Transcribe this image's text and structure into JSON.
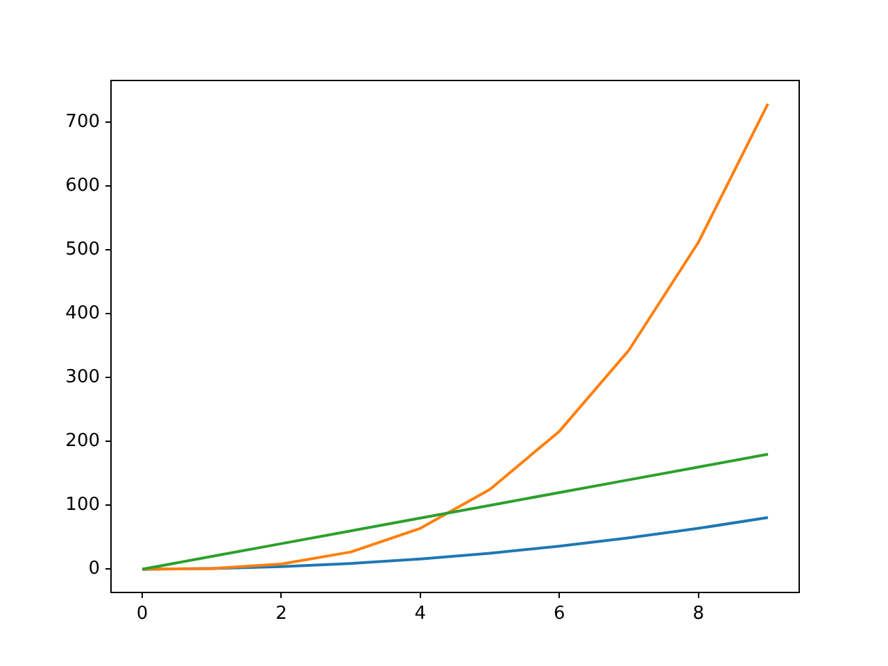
{
  "chart_data": {
    "type": "line",
    "x": [
      0,
      1,
      2,
      3,
      4,
      5,
      6,
      7,
      8,
      9
    ],
    "series": [
      {
        "color": "#1f77b4",
        "values": [
          0,
          1,
          4,
          9,
          16,
          25,
          36,
          49,
          64,
          81
        ]
      },
      {
        "color": "#ff7f0e",
        "values": [
          0,
          1,
          8,
          27,
          64,
          125,
          216,
          343,
          512,
          729
        ]
      },
      {
        "color": "#2ca02c",
        "values": [
          0,
          20,
          40,
          60,
          80,
          100,
          120,
          140,
          160,
          180
        ]
      }
    ],
    "xlim": [
      -0.45,
      9.45
    ],
    "xticks": [
      0,
      2,
      4,
      6,
      8
    ],
    "ylim": [
      -36.45,
      765.45
    ],
    "yticks": [
      0,
      100,
      200,
      300,
      400,
      500,
      600,
      700
    ],
    "grid": false,
    "legend": false,
    "marker": "none",
    "line_style": "solid"
  }
}
